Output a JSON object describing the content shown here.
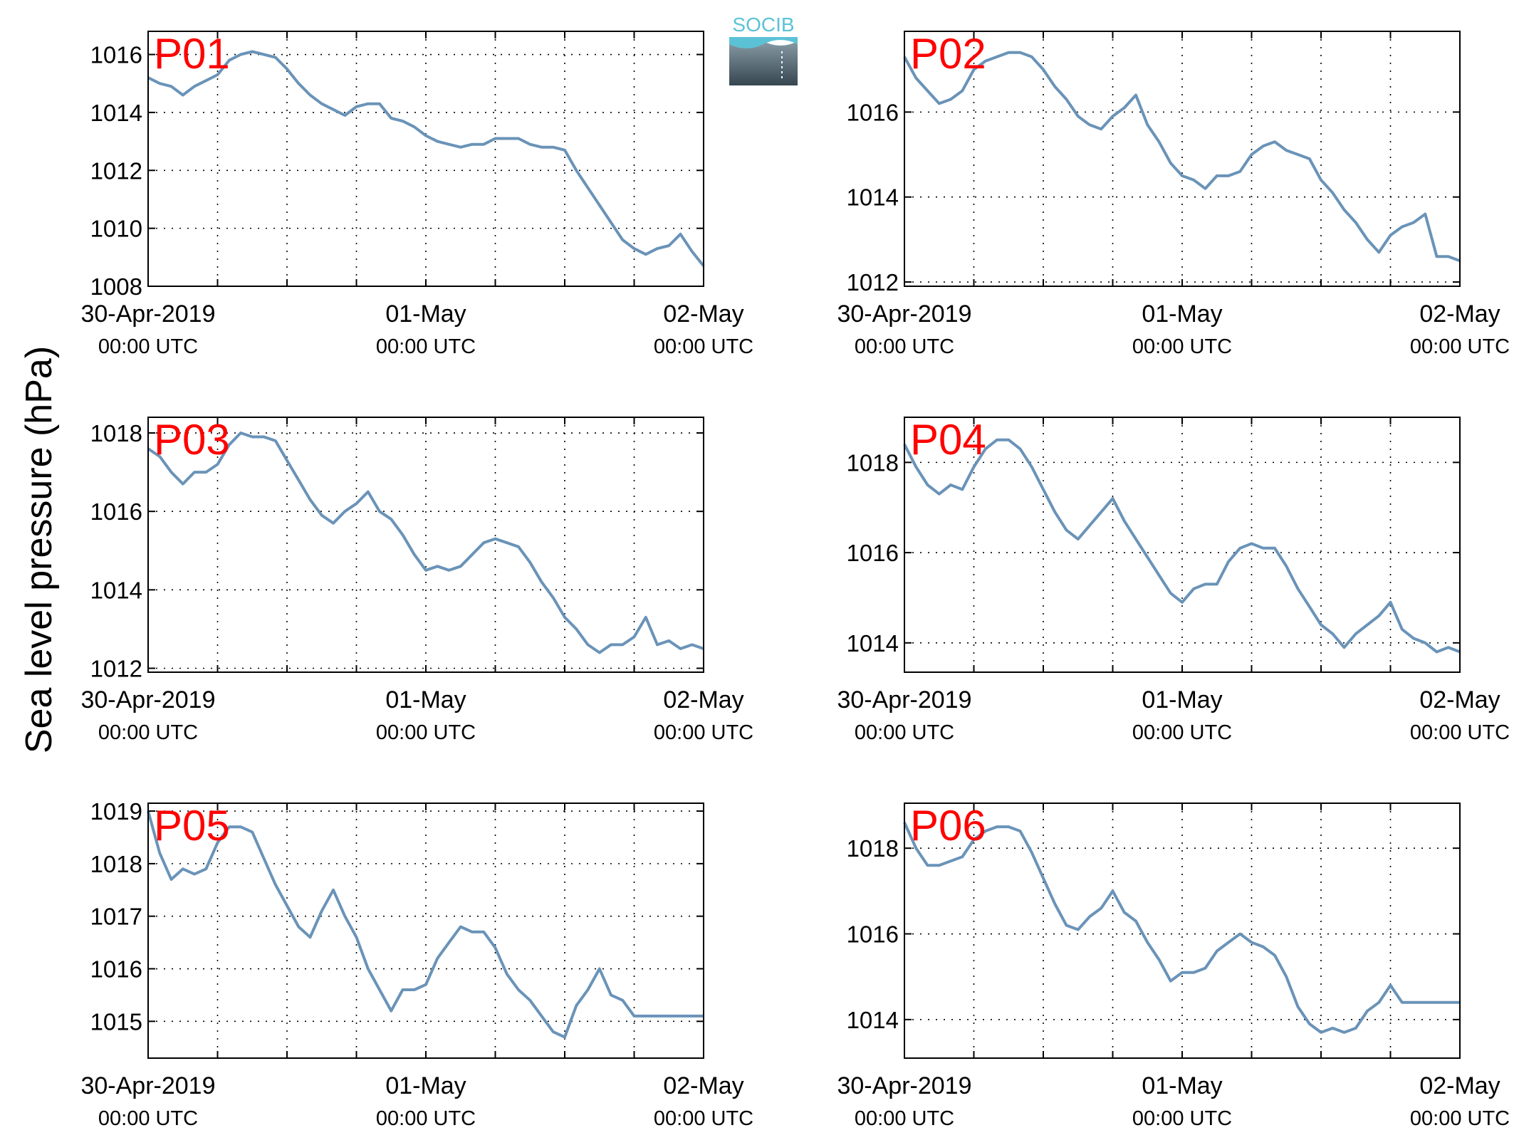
{
  "figure": {
    "ylabel": "Sea level pressure (hPa)",
    "logo_text": "SOCIB"
  },
  "colors": {
    "line": "#6a93b8",
    "panel_label": "#ff0000",
    "axis": "#000000",
    "grid": "#000000",
    "logo_top": "#5bc2d6",
    "logo_dark": "#364650"
  },
  "chart_data": [
    {
      "type": "line",
      "label": "P01",
      "x_ticks": [
        {
          "hours": 0,
          "date": "30-Apr-2019",
          "time": "00:00 UTC"
        },
        {
          "hours": 24,
          "date": "01-May",
          "time": "00:00 UTC"
        },
        {
          "hours": 48,
          "date": "02-May",
          "time": "00:00 UTC"
        }
      ],
      "x_grid_hours": [
        6,
        12,
        18,
        24,
        30,
        36,
        42
      ],
      "xlim_hours": [
        0,
        48
      ],
      "ylim": [
        1008,
        1016.8
      ],
      "yticks": [
        1008,
        1010,
        1012,
        1014,
        1016
      ],
      "grid": true,
      "x_hours": [
        0,
        1,
        2,
        3,
        4,
        5,
        6,
        7,
        8,
        9,
        10,
        11,
        12,
        13,
        14,
        15,
        16,
        17,
        18,
        19,
        20,
        21,
        22,
        23,
        24,
        25,
        26,
        27,
        28,
        29,
        30,
        31,
        32,
        33,
        34,
        35,
        36,
        37,
        38,
        39,
        40,
        41,
        42,
        43,
        44,
        45,
        46,
        47,
        48
      ],
      "values": [
        1015.2,
        1015.0,
        1014.9,
        1014.6,
        1014.9,
        1015.1,
        1015.3,
        1015.8,
        1016.0,
        1016.1,
        1016.0,
        1015.9,
        1015.5,
        1015.0,
        1014.6,
        1014.3,
        1014.1,
        1013.9,
        1014.2,
        1014.3,
        1014.3,
        1013.8,
        1013.7,
        1013.5,
        1013.2,
        1013.0,
        1012.9,
        1012.8,
        1012.9,
        1012.9,
        1013.1,
        1013.1,
        1013.1,
        1012.9,
        1012.8,
        1012.8,
        1012.7,
        1012.0,
        1011.4,
        1010.8,
        1010.2,
        1009.6,
        1009.3,
        1009.1,
        1009.3,
        1009.4,
        1009.8,
        1009.2,
        1008.7
      ]
    },
    {
      "type": "line",
      "label": "P02",
      "x_ticks": [
        {
          "hours": 0,
          "date": "30-Apr-2019",
          "time": "00:00 UTC"
        },
        {
          "hours": 24,
          "date": "01-May",
          "time": "00:00 UTC"
        },
        {
          "hours": 48,
          "date": "02-May",
          "time": "00:00 UTC"
        }
      ],
      "x_grid_hours": [
        6,
        12,
        18,
        24,
        30,
        36,
        42
      ],
      "xlim_hours": [
        0,
        48
      ],
      "ylim": [
        1011.9,
        1017.9
      ],
      "yticks": [
        1012,
        1014,
        1016
      ],
      "grid": true,
      "x_hours": [
        0,
        1,
        2,
        3,
        4,
        5,
        6,
        7,
        8,
        9,
        10,
        11,
        12,
        13,
        14,
        15,
        16,
        17,
        18,
        19,
        20,
        21,
        22,
        23,
        24,
        25,
        26,
        27,
        28,
        29,
        30,
        31,
        32,
        33,
        34,
        35,
        36,
        37,
        38,
        39,
        40,
        41,
        42,
        43,
        44,
        45,
        46,
        47,
        48
      ],
      "values": [
        1017.3,
        1016.8,
        1016.5,
        1016.2,
        1016.3,
        1016.5,
        1017.0,
        1017.2,
        1017.3,
        1017.4,
        1017.4,
        1017.3,
        1017.0,
        1016.6,
        1016.3,
        1015.9,
        1015.7,
        1015.6,
        1015.9,
        1016.1,
        1016.4,
        1015.7,
        1015.3,
        1014.8,
        1014.5,
        1014.4,
        1014.2,
        1014.5,
        1014.5,
        1014.6,
        1015.0,
        1015.2,
        1015.3,
        1015.1,
        1015.0,
        1014.9,
        1014.4,
        1014.1,
        1013.7,
        1013.4,
        1013.0,
        1012.7,
        1013.1,
        1013.3,
        1013.4,
        1013.6,
        1012.6,
        1012.6,
        1012.5
      ]
    },
    {
      "type": "line",
      "label": "P03",
      "x_ticks": [
        {
          "hours": 0,
          "date": "30-Apr-2019",
          "time": "00:00 UTC"
        },
        {
          "hours": 24,
          "date": "01-May",
          "time": "00:00 UTC"
        },
        {
          "hours": 48,
          "date": "02-May",
          "time": "00:00 UTC"
        }
      ],
      "x_grid_hours": [
        6,
        12,
        18,
        24,
        30,
        36,
        42
      ],
      "xlim_hours": [
        0,
        48
      ],
      "ylim": [
        1011.9,
        1018.4
      ],
      "yticks": [
        1012,
        1014,
        1016,
        1018
      ],
      "grid": true,
      "x_hours": [
        0,
        1,
        2,
        3,
        4,
        5,
        6,
        7,
        8,
        9,
        10,
        11,
        12,
        13,
        14,
        15,
        16,
        17,
        18,
        19,
        20,
        21,
        22,
        23,
        24,
        25,
        26,
        27,
        28,
        29,
        30,
        31,
        32,
        33,
        34,
        35,
        36,
        37,
        38,
        39,
        40,
        41,
        42,
        43,
        44,
        45,
        46,
        47,
        48
      ],
      "values": [
        1017.6,
        1017.4,
        1017.0,
        1016.7,
        1017.0,
        1017.0,
        1017.2,
        1017.7,
        1018.0,
        1017.9,
        1017.9,
        1017.8,
        1017.3,
        1016.8,
        1016.3,
        1015.9,
        1015.7,
        1016.0,
        1016.2,
        1016.5,
        1016.0,
        1015.8,
        1015.4,
        1014.9,
        1014.5,
        1014.6,
        1014.5,
        1014.6,
        1014.9,
        1015.2,
        1015.3,
        1015.2,
        1015.1,
        1014.7,
        1014.2,
        1013.8,
        1013.3,
        1013.0,
        1012.6,
        1012.4,
        1012.6,
        1012.6,
        1012.8,
        1013.3,
        1012.6,
        1012.7,
        1012.5,
        1012.6,
        1012.5
      ]
    },
    {
      "type": "line",
      "label": "P04",
      "x_ticks": [
        {
          "hours": 0,
          "date": "30-Apr-2019",
          "time": "00:00 UTC"
        },
        {
          "hours": 24,
          "date": "01-May",
          "time": "00:00 UTC"
        },
        {
          "hours": 48,
          "date": "02-May",
          "time": "00:00 UTC"
        }
      ],
      "x_grid_hours": [
        6,
        12,
        18,
        24,
        30,
        36,
        42
      ],
      "xlim_hours": [
        0,
        48
      ],
      "ylim": [
        1013.35,
        1019.0
      ],
      "yticks": [
        1014,
        1016,
        1018
      ],
      "grid": true,
      "x_hours": [
        0,
        1,
        2,
        3,
        4,
        5,
        6,
        7,
        8,
        9,
        10,
        11,
        12,
        13,
        14,
        15,
        16,
        17,
        18,
        19,
        20,
        21,
        22,
        23,
        24,
        25,
        26,
        27,
        28,
        29,
        30,
        31,
        32,
        33,
        34,
        35,
        36,
        37,
        38,
        39,
        40,
        41,
        42,
        43,
        44,
        45,
        46,
        47,
        48
      ],
      "values": [
        1018.4,
        1017.9,
        1017.5,
        1017.3,
        1017.5,
        1017.4,
        1017.9,
        1018.3,
        1018.5,
        1018.5,
        1018.3,
        1017.9,
        1017.4,
        1016.9,
        1016.5,
        1016.3,
        1016.6,
        1016.9,
        1017.2,
        1016.7,
        1016.3,
        1015.9,
        1015.5,
        1015.1,
        1014.9,
        1015.2,
        1015.3,
        1015.3,
        1015.8,
        1016.1,
        1016.2,
        1016.1,
        1016.1,
        1015.7,
        1015.2,
        1014.8,
        1014.4,
        1014.2,
        1013.9,
        1014.2,
        1014.4,
        1014.6,
        1014.9,
        1014.3,
        1014.1,
        1014.0,
        1013.8,
        1013.9,
        1013.8
      ]
    },
    {
      "type": "line",
      "label": "P05",
      "x_ticks": [
        {
          "hours": 0,
          "date": "30-Apr-2019",
          "time": "00:00 UTC"
        },
        {
          "hours": 24,
          "date": "01-May",
          "time": "00:00 UTC"
        },
        {
          "hours": 48,
          "date": "02-May",
          "time": "00:00 UTC"
        }
      ],
      "x_grid_hours": [
        6,
        12,
        18,
        24,
        30,
        36,
        42
      ],
      "xlim_hours": [
        0,
        48
      ],
      "ylim": [
        1014.3,
        1019.15
      ],
      "yticks": [
        1015,
        1016,
        1017,
        1018,
        1019
      ],
      "grid": true,
      "x_hours": [
        0,
        1,
        2,
        3,
        4,
        5,
        6,
        7,
        8,
        9,
        10,
        11,
        12,
        13,
        14,
        15,
        16,
        17,
        18,
        19,
        20,
        21,
        22,
        23,
        24,
        25,
        26,
        27,
        28,
        29,
        30,
        31,
        32,
        33,
        34,
        35,
        36,
        37,
        38,
        39,
        40,
        41,
        42,
        43,
        44,
        45,
        46,
        47,
        48
      ],
      "values": [
        1019.0,
        1018.2,
        1017.7,
        1017.9,
        1017.8,
        1017.9,
        1018.4,
        1018.7,
        1018.7,
        1018.6,
        1018.1,
        1017.6,
        1017.2,
        1016.8,
        1016.6,
        1017.1,
        1017.5,
        1017.0,
        1016.6,
        1016.0,
        1015.6,
        1015.2,
        1015.6,
        1015.6,
        1015.7,
        1016.2,
        1016.5,
        1016.8,
        1016.7,
        1016.7,
        1016.4,
        1015.9,
        1015.6,
        1015.4,
        1015.1,
        1014.8,
        1014.7,
        1015.3,
        1015.6,
        1016.0,
        1015.5,
        1015.4,
        1015.1,
        1015.1,
        1015.1,
        1015.1,
        1015.1,
        1015.1,
        1015.1
      ]
    },
    {
      "type": "line",
      "label": "P06",
      "x_ticks": [
        {
          "hours": 0,
          "date": "30-Apr-2019",
          "time": "00:00 UTC"
        },
        {
          "hours": 24,
          "date": "01-May",
          "time": "00:00 UTC"
        },
        {
          "hours": 48,
          "date": "02-May",
          "time": "00:00 UTC"
        }
      ],
      "x_grid_hours": [
        6,
        12,
        18,
        24,
        30,
        36,
        42
      ],
      "xlim_hours": [
        0,
        48
      ],
      "ylim": [
        1013.1,
        1019.05
      ],
      "yticks": [
        1014,
        1016,
        1018
      ],
      "grid": true,
      "x_hours": [
        0,
        1,
        2,
        3,
        4,
        5,
        6,
        7,
        8,
        9,
        10,
        11,
        12,
        13,
        14,
        15,
        16,
        17,
        18,
        19,
        20,
        21,
        22,
        23,
        24,
        25,
        26,
        27,
        28,
        29,
        30,
        31,
        32,
        33,
        34,
        35,
        36,
        37,
        38,
        39,
        40,
        41,
        42,
        43,
        44,
        45,
        46,
        47,
        48
      ],
      "values": [
        1018.6,
        1018.0,
        1017.6,
        1017.6,
        1017.7,
        1017.8,
        1018.2,
        1018.4,
        1018.5,
        1018.5,
        1018.4,
        1017.9,
        1017.3,
        1016.7,
        1016.2,
        1016.1,
        1016.4,
        1016.6,
        1017.0,
        1016.5,
        1016.3,
        1015.8,
        1015.4,
        1014.9,
        1015.1,
        1015.1,
        1015.2,
        1015.6,
        1015.8,
        1016.0,
        1015.8,
        1015.7,
        1015.5,
        1015.0,
        1014.3,
        1013.9,
        1013.7,
        1013.8,
        1013.7,
        1013.8,
        1014.2,
        1014.4,
        1014.8,
        1014.4,
        1014.4,
        1014.4,
        1014.4,
        1014.4,
        1014.4
      ]
    }
  ]
}
